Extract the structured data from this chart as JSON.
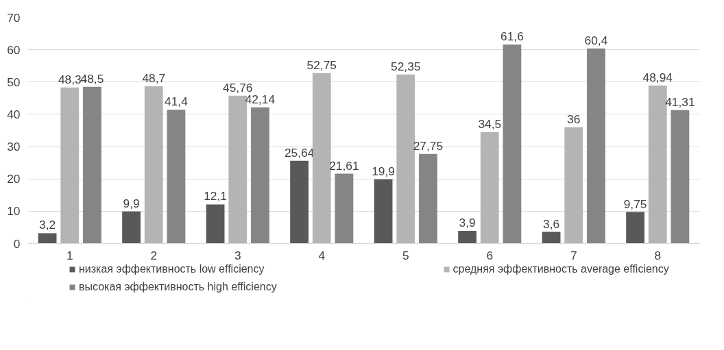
{
  "chart_data": {
    "type": "bar",
    "categories": [
      "1",
      "2",
      "3",
      "4",
      "5",
      "6",
      "7",
      "8"
    ],
    "series": [
      {
        "name": "низкая эффективность low efficiency",
        "color": "#595959",
        "values": [
          3.2,
          9.9,
          12.1,
          25.64,
          19.9,
          3.9,
          3.6,
          9.75
        ],
        "value_labels": [
          "3,2",
          "9,9",
          "12,1",
          "25,64",
          "19,9",
          "3,9",
          "3,6",
          "9,75"
        ]
      },
      {
        "name": "средняя эффективность average efficiency",
        "color": "#b4b4b4",
        "values": [
          48.3,
          48.7,
          45.76,
          52.75,
          52.35,
          34.5,
          36,
          48.94
        ],
        "value_labels": [
          "48,3",
          "48,7",
          "45,76",
          "52,75",
          "52,35",
          "34,5",
          "36",
          "48,94"
        ]
      },
      {
        "name": "высокая эффективность high efficiency",
        "color": "#858585",
        "values": [
          48.5,
          41.4,
          42.14,
          21.61,
          27.75,
          61.6,
          60.4,
          41.31
        ],
        "value_labels": [
          "48,5",
          "41,4",
          "42,14",
          "21,61",
          "27,75",
          "61,6",
          "60,4",
          "41,31"
        ]
      }
    ],
    "ylim": [
      0,
      70
    ],
    "yticks": [
      0,
      10,
      20,
      30,
      40,
      50,
      60,
      70
    ],
    "grid": "y",
    "legend": "bottom"
  }
}
